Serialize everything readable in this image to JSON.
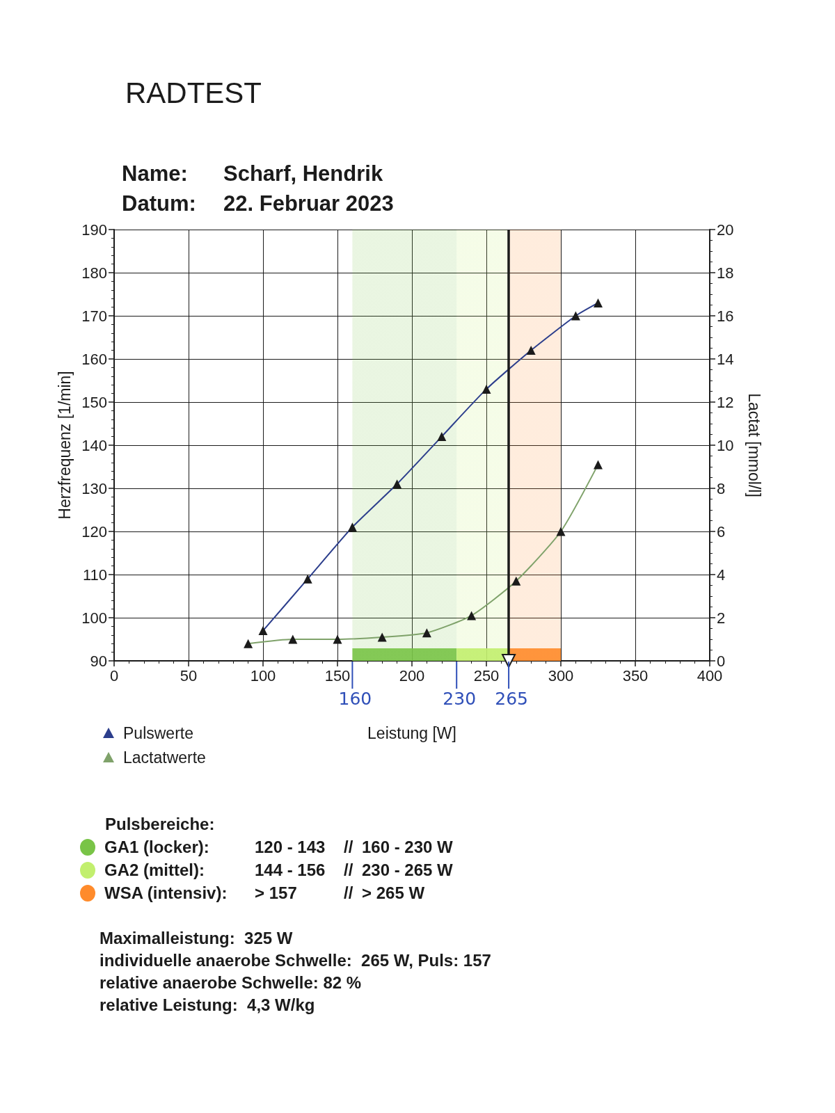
{
  "chart_data": {
    "type": "line",
    "title": "RADTEST",
    "subtitle": "Name: Scharf, Hendrik\nDatum: 22. Februar 2023",
    "xlabel": "Leistung [W]",
    "ylabel": "Herzfrequenz [1/min]",
    "y2label": "Lactat [mmol/l]",
    "series": [
      {
        "name": "Pulswerte",
        "color": "#2c3e8c",
        "colors": [
          "#1b1b1b",
          "#1b1b1b",
          "#1b1b1b",
          "#1b1b1b",
          "#1b1b1b",
          "#1b1b1b",
          "#1b1b1b",
          "#1b1b1b",
          "#1b1b1b"
        ],
        "x": [
          100,
          130,
          160,
          190,
          220,
          250,
          280,
          310,
          325
        ],
        "values": [
          97,
          109,
          121,
          131,
          142,
          153,
          162,
          170,
          173
        ]
      },
      {
        "name": "Lactatwerte",
        "color": "#7fa26a",
        "colors": [
          "#1b1b1b",
          "#1b1b1b",
          "#1b1b1b",
          "#1b1b1b",
          "#1b1b1b",
          "#1b1b1b",
          "#1b1b1b",
          "#1b1b1b",
          "#1b1b1b"
        ],
        "axis": "y2",
        "x": [
          90,
          120,
          150,
          180,
          210,
          240,
          270,
          300,
          325
        ],
        "values": [
          0.8,
          1.0,
          1.0,
          1.1,
          1.3,
          2.1,
          3.7,
          6.0,
          9.1
        ]
      }
    ],
    "xlim": [
      0,
      400
    ],
    "xticks": [
      0,
      50,
      100,
      150,
      200,
      250,
      300,
      350,
      400
    ],
    "ylim": [
      90,
      190
    ],
    "yticks": [
      90,
      100,
      110,
      120,
      130,
      140,
      150,
      160,
      170,
      180,
      190
    ],
    "y2lim": [
      0,
      20
    ],
    "y2ticks": [
      0,
      2,
      4,
      6,
      8,
      10,
      12,
      14,
      16,
      18,
      20
    ],
    "grid": true,
    "legend": "bottom left",
    "marker": "triangle",
    "line_style": "solid",
    "ref_lines": [
      {
        "axis": "x",
        "value": 265,
        "color": "#1b1b1b"
      }
    ],
    "bands": [
      {
        "axis": "x",
        "from": 160,
        "to": 230,
        "label": "GA1 (locker): 120 - 143 // 160 - 230 W",
        "color": "#79c447"
      },
      {
        "axis": "x",
        "from": 230,
        "to": 265,
        "label": "GA2 (mittel): 144 - 156 // 230 - 265 W",
        "color": "#c2ef6e"
      },
      {
        "axis": "x",
        "from": 265,
        "to": 300,
        "label": "WSA (intensiv): > 157 // > 265 W",
        "color": "#ff8b2b"
      }
    ],
    "annotations": [
      {
        "text": "160",
        "x": 160,
        "y": 90
      },
      {
        "text": "230",
        "x": 230,
        "y": 90
      },
      {
        "text": "265",
        "x": 265,
        "y": 90
      },
      "Pulsbereiche:",
      "Maximalleistung:  325 W",
      "individuelle anaerobe Schwelle:  265 W, Puls: 157",
      "relative anaerobe Schwelle: 82 %",
      "relative Leistung:  4,3 W/kg"
    ]
  }
}
